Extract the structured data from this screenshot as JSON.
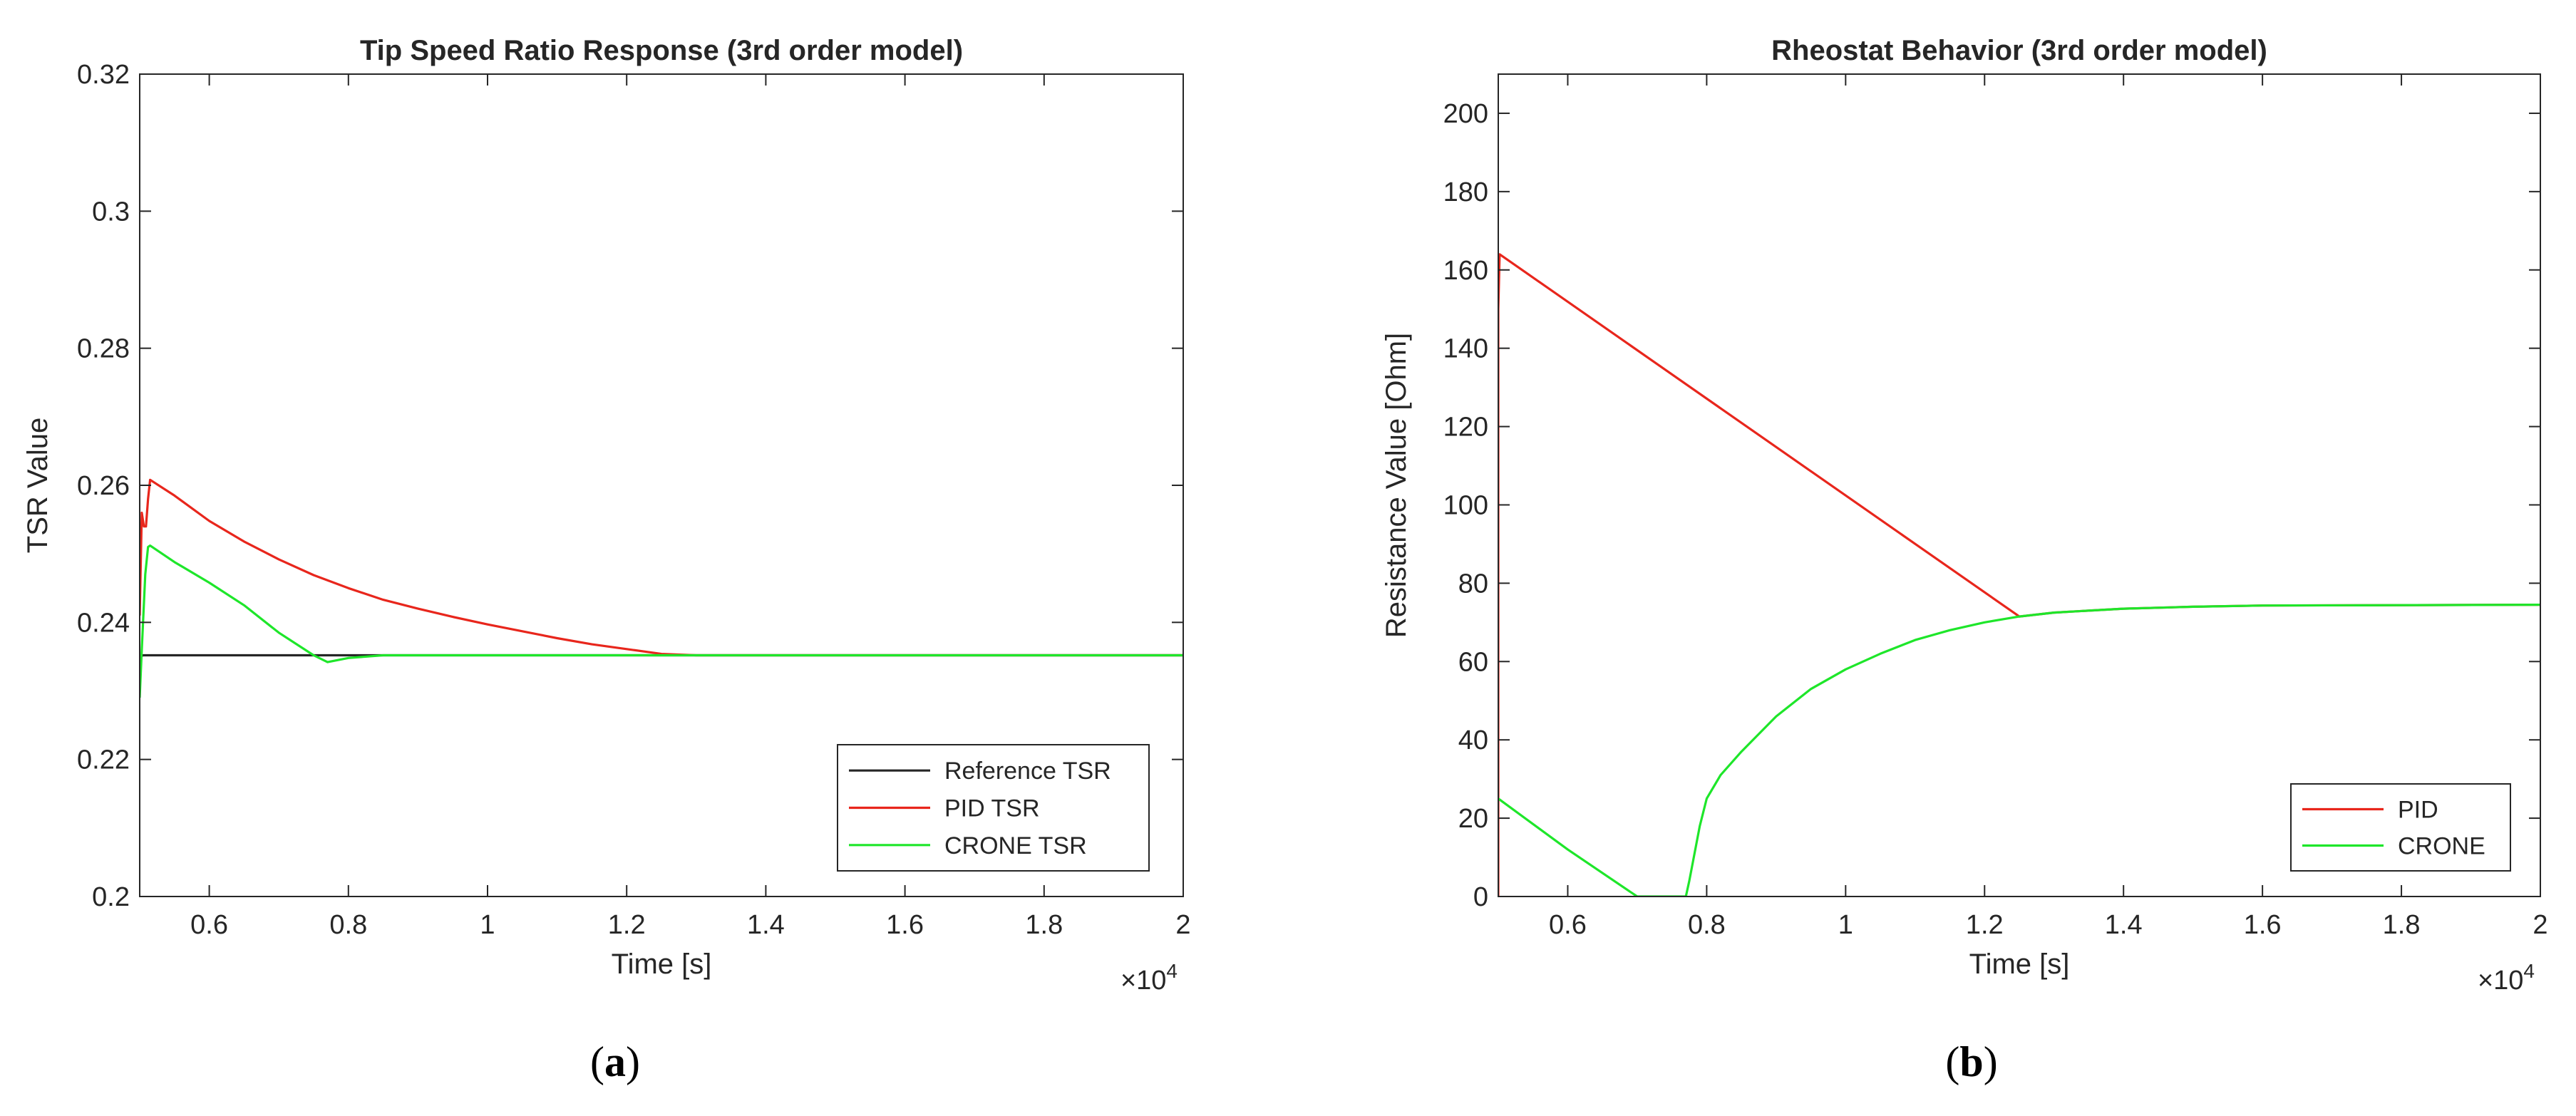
{
  "chart_data": [
    {
      "type": "line",
      "title": "Tip Speed Ratio Response (3rd order model)",
      "xlabel": "Time [s]",
      "ylabel": "TSR Value",
      "x_exponent_label": "×10",
      "x_exponent": "4",
      "xlim": [
        0.5,
        2.0
      ],
      "ylim": [
        0.2,
        0.32
      ],
      "xticks": [
        "0.6",
        "0.8",
        "1",
        "1.2",
        "1.4",
        "1.6",
        "1.8",
        "2"
      ],
      "xtick_values": [
        0.6,
        0.8,
        1.0,
        1.2,
        1.4,
        1.6,
        1.8,
        2.0
      ],
      "yticks": [
        "0.2",
        "0.22",
        "0.24",
        "0.26",
        "0.28",
        "0.3",
        "0.32"
      ],
      "ytick_values": [
        0.2,
        0.22,
        0.24,
        0.26,
        0.28,
        0.3,
        0.32
      ],
      "grid": false,
      "legend_position": "bottom-right",
      "panel_label": "a",
      "series": [
        {
          "name": "Reference TSR",
          "color": "#262626",
          "x": [
            0.5,
            0.505,
            2.0
          ],
          "y": [
            0.235,
            0.2352,
            0.2352
          ]
        },
        {
          "name": "PID TSR",
          "color": "#e8261c",
          "x": [
            0.5,
            0.503,
            0.506,
            0.509,
            0.512,
            0.515,
            0.55,
            0.6,
            0.65,
            0.7,
            0.75,
            0.8,
            0.85,
            0.9,
            0.95,
            1.0,
            1.05,
            1.1,
            1.15,
            1.2,
            1.25,
            1.3,
            1.5,
            2.0
          ],
          "y": [
            0.241,
            0.256,
            0.254,
            0.254,
            0.258,
            0.2608,
            0.2585,
            0.2548,
            0.2518,
            0.2492,
            0.2469,
            0.245,
            0.2433,
            0.242,
            0.2408,
            0.2397,
            0.2387,
            0.2377,
            0.2368,
            0.2361,
            0.2354,
            0.2352,
            0.2352,
            0.2352
          ]
        },
        {
          "name": "CRONE TSR",
          "color": "#1ee62a",
          "x": [
            0.5,
            0.503,
            0.508,
            0.512,
            0.515,
            0.55,
            0.6,
            0.65,
            0.7,
            0.75,
            0.77,
            0.8,
            0.85,
            0.9,
            1.0,
            1.2,
            1.5,
            2.0
          ],
          "y": [
            0.229,
            0.236,
            0.247,
            0.251,
            0.2512,
            0.2488,
            0.2458,
            0.2425,
            0.2385,
            0.2352,
            0.2342,
            0.2348,
            0.2352,
            0.2352,
            0.2352,
            0.2352,
            0.2352,
            0.2352
          ]
        }
      ]
    },
    {
      "type": "line",
      "title": "Rheostat Behavior (3rd order model)",
      "xlabel": "Time [s]",
      "ylabel": "Resistance Value [Ohm]",
      "x_exponent_label": "×10",
      "x_exponent": "4",
      "xlim": [
        0.5,
        2.0
      ],
      "ylim": [
        0,
        210
      ],
      "xticks": [
        "0.6",
        "0.8",
        "1",
        "1.2",
        "1.4",
        "1.6",
        "1.8",
        "2"
      ],
      "xtick_values": [
        0.6,
        0.8,
        1.0,
        1.2,
        1.4,
        1.6,
        1.8,
        2.0
      ],
      "yticks": [
        "0",
        "20",
        "40",
        "60",
        "80",
        "100",
        "120",
        "140",
        "160",
        "180",
        "200"
      ],
      "ytick_values": [
        0,
        20,
        40,
        60,
        80,
        100,
        120,
        140,
        160,
        180,
        200
      ],
      "grid": false,
      "legend_position": "bottom-right",
      "panel_label": "b",
      "series": [
        {
          "name": "PID",
          "color": "#e8261c",
          "x": [
            0.5,
            0.5,
            0.502,
            1.25,
            1.3,
            1.4,
            1.5,
            1.6,
            2.0
          ],
          "y": [
            0,
            150,
            164,
            71.5,
            72.5,
            73.5,
            74.0,
            74.3,
            74.5
          ]
        },
        {
          "name": "CRONE",
          "color": "#1ee62a",
          "x": [
            0.5,
            0.6,
            0.7,
            0.77,
            0.775,
            0.79,
            0.8,
            0.82,
            0.85,
            0.9,
            0.95,
            1.0,
            1.05,
            1.1,
            1.15,
            1.2,
            1.25,
            1.3,
            1.4,
            1.5,
            1.6,
            2.0
          ],
          "y": [
            25,
            12,
            0,
            0,
            4,
            18,
            25,
            31,
            37,
            46,
            53,
            58,
            62,
            65.5,
            68,
            70,
            71.5,
            72.5,
            73.5,
            74.0,
            74.3,
            74.5
          ]
        }
      ]
    }
  ]
}
